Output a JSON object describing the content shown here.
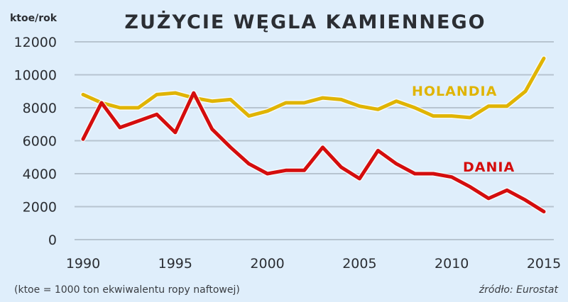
{
  "chart_data": {
    "type": "line",
    "title": "ZUŻYCIE WĘGLA KAMIENNEGO",
    "ylabel": "ktoe/rok",
    "xlabel": "",
    "ylim": [
      0,
      12000
    ],
    "yticks": [
      0,
      2000,
      4000,
      6000,
      8000,
      10000,
      12000
    ],
    "xticks": [
      1990,
      1995,
      2000,
      2005,
      2010,
      2015
    ],
    "grid": true,
    "legend_position": "inline labels",
    "x": [
      1990,
      1991,
      1992,
      1993,
      1994,
      1995,
      1996,
      1997,
      1998,
      1999,
      2000,
      2001,
      2002,
      2003,
      2004,
      2005,
      2006,
      2007,
      2008,
      2009,
      2010,
      2011,
      2012,
      2013,
      2014,
      2015
    ],
    "series": [
      {
        "name": "HOLANDIA",
        "color": "#e0b400",
        "values": [
          8800,
          8300,
          8000,
          8000,
          8800,
          8900,
          8600,
          8400,
          8500,
          7500,
          7800,
          8300,
          8300,
          8600,
          8500,
          8100,
          7900,
          8400,
          8000,
          7500,
          7500,
          7400,
          8100,
          8100,
          9000,
          11000
        ]
      },
      {
        "name": "DANIA",
        "color": "#d40d0d",
        "values": [
          6100,
          8300,
          6800,
          7200,
          7600,
          6500,
          8900,
          6700,
          5600,
          4600,
          4000,
          4200,
          4200,
          5600,
          4400,
          3700,
          5400,
          4600,
          4000,
          4000,
          3800,
          3200,
          2500,
          3000,
          2400,
          1700
        ]
      }
    ],
    "annotations": {
      "footnote": "(ktoe = 1000 ton ekwiwalentu ropy naftowej)",
      "source": "źródło: Eurostat"
    }
  },
  "labels": {
    "title": "ZUŻYCIE WĘGLA KAMIENNEGO",
    "unit": "ktoe/rok",
    "footnote": "(ktoe = 1000 ton ekwiwalentu ropy naftowej)",
    "source": "źródło: Eurostat",
    "series_holandia": "HOLANDIA",
    "series_dania": "DANIA"
  }
}
